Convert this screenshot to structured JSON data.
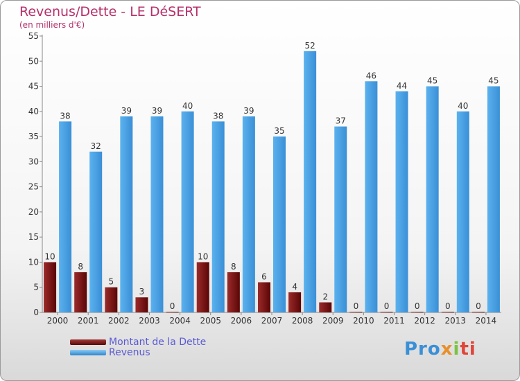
{
  "header": {
    "title": "Revenus/Dette - LE DéSERT",
    "subtitle": "(en milliers d'€)"
  },
  "chart_data": {
    "type": "bar",
    "categories": [
      "2000",
      "2001",
      "2002",
      "2003",
      "2004",
      "2005",
      "2006",
      "2007",
      "2008",
      "2009",
      "2010",
      "2011",
      "2012",
      "2013",
      "2014"
    ],
    "series": [
      {
        "name": "Montant de la Dette",
        "color": "#7a1010",
        "values": [
          10,
          8,
          5,
          3,
          0,
          10,
          8,
          6,
          4,
          2,
          0,
          0,
          0,
          0,
          0
        ]
      },
      {
        "name": "Revenus",
        "color": "#4aa3e6",
        "values": [
          38,
          32,
          39,
          39,
          40,
          38,
          39,
          35,
          52,
          37,
          46,
          44,
          45,
          40,
          45
        ]
      }
    ],
    "ylim": [
      0,
      55
    ],
    "yticks": [
      0,
      5,
      10,
      15,
      20,
      25,
      30,
      35,
      40,
      45,
      50,
      55
    ],
    "grid": false,
    "legend": "bottom-left"
  },
  "legend": {
    "items": [
      {
        "label": "Montant de la Dette",
        "color": "#7a1010"
      },
      {
        "label": "Revenus",
        "color": "#4aa3e6"
      }
    ]
  },
  "logo": {
    "p1": "Pro",
    "p2": "x",
    "p3": "i",
    "p4": "ti"
  }
}
